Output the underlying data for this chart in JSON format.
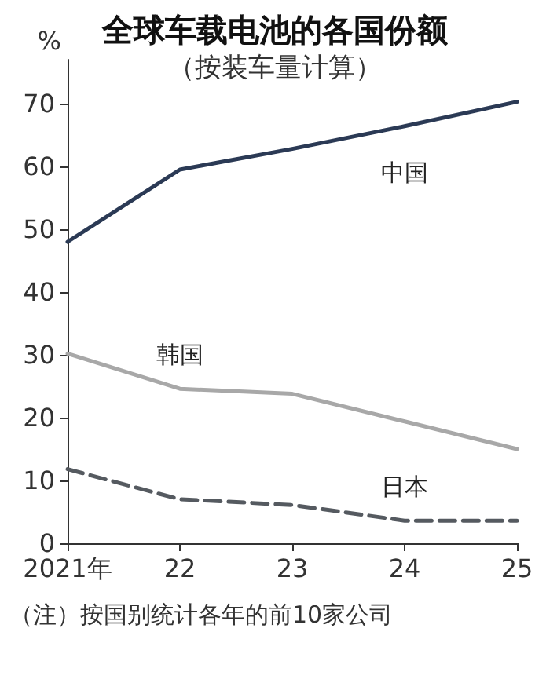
{
  "chart_data": {
    "type": "line",
    "title": "全球车载电池的各国份额",
    "subtitle": "（按装车量计算）",
    "ylabel": "%",
    "categories": [
      "2021年",
      "22",
      "23",
      "24",
      "25"
    ],
    "series": [
      {
        "name": "中国",
        "color": "#2b3a55",
        "line_style": "solid",
        "values": [
          48,
          59.5,
          62.8,
          66.4,
          70.3
        ]
      },
      {
        "name": "韩国",
        "color": "#a8a8a8",
        "line_style": "solid",
        "values": [
          30.2,
          24.6,
          23.8,
          19.4,
          15
        ]
      },
      {
        "name": "日本",
        "color": "#555a60",
        "line_style": "dashed",
        "values": [
          11.8,
          7,
          6.1,
          3.6,
          3.6
        ]
      }
    ],
    "ylim": [
      0,
      77
    ],
    "yticks": [
      0,
      10,
      20,
      30,
      40,
      50,
      60,
      70
    ],
    "grid": false,
    "legend": false,
    "marker": "none",
    "annotations": [
      "（注）按国别统计各年的前10家公司"
    ]
  }
}
